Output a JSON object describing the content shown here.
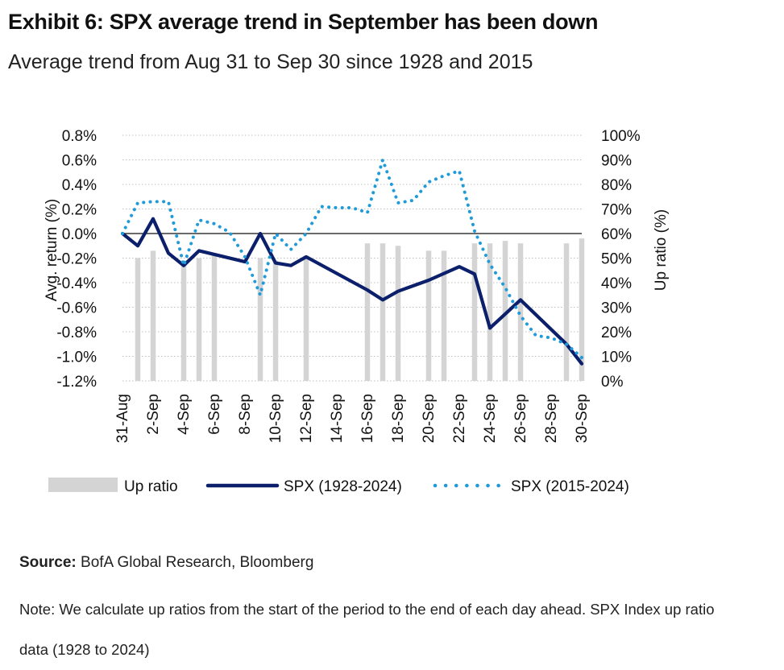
{
  "header": {
    "title": "Exhibit 6: SPX average trend in September has been down",
    "subtitle": "Average trend from Aug 31 to Sep 30 since 1928 and 2015"
  },
  "chart_data": {
    "type": "bar+line",
    "categories": [
      "31-Aug",
      "1-Sep",
      "2-Sep",
      "3-Sep",
      "4-Sep",
      "5-Sep",
      "6-Sep",
      "7-Sep",
      "8-Sep",
      "9-Sep",
      "10-Sep",
      "11-Sep",
      "12-Sep",
      "13-Sep",
      "14-Sep",
      "15-Sep",
      "16-Sep",
      "17-Sep",
      "18-Sep",
      "19-Sep",
      "20-Sep",
      "21-Sep",
      "22-Sep",
      "23-Sep",
      "24-Sep",
      "25-Sep",
      "26-Sep",
      "27-Sep",
      "28-Sep",
      "29-Sep",
      "30-Sep"
    ],
    "tick_labels": [
      "31-Aug",
      "2-Sep",
      "4-Sep",
      "6-Sep",
      "8-Sep",
      "10-Sep",
      "12-Sep",
      "14-Sep",
      "16-Sep",
      "18-Sep",
      "20-Sep",
      "22-Sep",
      "24-Sep",
      "26-Sep",
      "28-Sep",
      "30-Sep"
    ],
    "y_left": {
      "label": "Avg. return (%)",
      "min": -1.2,
      "max": 0.8,
      "step": 0.2,
      "ticks": [
        "0.8%",
        "0.6%",
        "0.4%",
        "0.2%",
        "0.0%",
        "-0.2%",
        "-0.4%",
        "-0.6%",
        "-0.8%",
        "-1.0%",
        "-1.2%"
      ]
    },
    "y_right": {
      "label": "Up ratio (%)",
      "min": 0,
      "max": 100,
      "step": 10,
      "ticks": [
        "100%",
        "90%",
        "80%",
        "70%",
        "60%",
        "50%",
        "40%",
        "30%",
        "20%",
        "10%",
        "0%"
      ]
    },
    "series": [
      {
        "name": "Up ratio",
        "type": "bar",
        "axis": "right",
        "color": "#d4d4d4",
        "values": [
          null,
          50,
          53,
          null,
          49,
          50,
          51,
          null,
          null,
          50,
          49,
          null,
          51,
          null,
          null,
          null,
          56,
          56,
          55,
          null,
          53,
          53,
          null,
          56,
          56,
          57,
          56,
          null,
          null,
          56,
          58
        ]
      },
      {
        "name": "SPX (1928-2024)",
        "type": "line",
        "axis": "left",
        "color": "#0b1f6b",
        "values": [
          0.0,
          -0.1,
          0.12,
          -0.16,
          -0.26,
          -0.14,
          null,
          null,
          -0.23,
          0.0,
          -0.24,
          -0.26,
          -0.19,
          null,
          null,
          null,
          -0.46,
          -0.54,
          -0.47,
          null,
          -0.38,
          null,
          -0.27,
          -0.33,
          -0.77,
          null,
          -0.54,
          null,
          null,
          -0.9,
          -1.06
        ]
      },
      {
        "name": "SPX (2015-2024)",
        "type": "line",
        "axis": "left",
        "color": "#1f9bd9",
        "values": [
          0.0,
          0.25,
          0.26,
          0.26,
          -0.26,
          0.11,
          0.08,
          0.01,
          -0.19,
          -0.5,
          0.0,
          -0.13,
          0.0,
          0.22,
          0.21,
          0.21,
          0.17,
          0.6,
          0.25,
          0.27,
          0.42,
          0.47,
          0.51,
          0.02,
          -0.25,
          -0.44,
          -0.67,
          -0.83,
          -0.85,
          -0.9,
          -1.01
        ]
      }
    ],
    "legend": {
      "position": "bottom",
      "items": [
        "Up ratio",
        "SPX (1928-2024)",
        "SPX (2015-2024)"
      ]
    },
    "grid": "horizontal-dotted"
  },
  "footer": {
    "source_label": "Source:",
    "source_text": "BofA Global Research, Bloomberg",
    "note": "Note: We calculate up ratios from the start of the period to the end of each day ahead. SPX Index up ratio data (1928 to 2024)"
  }
}
